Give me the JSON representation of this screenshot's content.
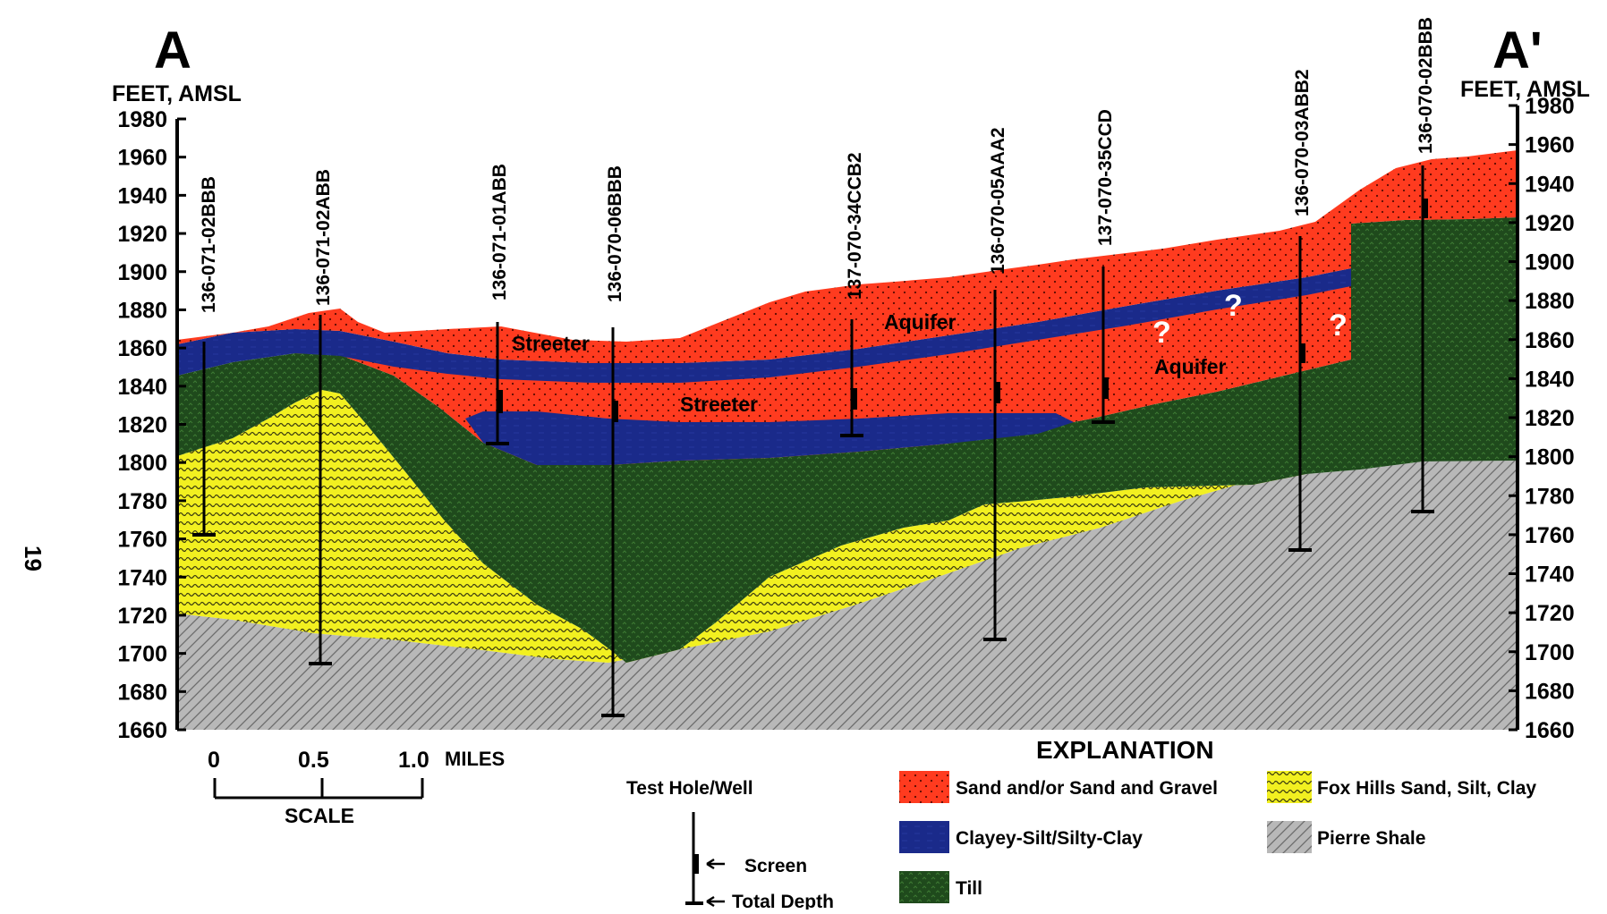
{
  "section": {
    "left_label": "A",
    "right_label": "A'",
    "left_axis_title": "FEET, AMSL",
    "right_axis_title": "FEET, AMSL"
  },
  "axis": {
    "ylim": [
      1660,
      1980
    ],
    "ticks": [
      "1980",
      "1960",
      "1940",
      "1920",
      "1900",
      "1880",
      "1860",
      "1840",
      "1820",
      "1800",
      "1780",
      "1760",
      "1740",
      "1720",
      "1700",
      "1680",
      "1660"
    ]
  },
  "page_number": "19",
  "wells": [
    {
      "id": "136-071-02BBB"
    },
    {
      "id": "136-071-02ABB"
    },
    {
      "id": "136-071-01ABB"
    },
    {
      "id": "136-070-06BBB"
    },
    {
      "id": "137-070-34CCB2"
    },
    {
      "id": "136-070-05AAA2"
    },
    {
      "id": "137-070-35CCD"
    },
    {
      "id": "136-070-03ABB2"
    },
    {
      "id": "136-070-02BBB"
    }
  ],
  "unit_labels": {
    "streeter_upper": "Streeter",
    "streeter_lower": "Streeter",
    "aquifer_upper": "Aquifer",
    "aquifer_lower": "Aquifer",
    "question_mark": "?"
  },
  "scale": {
    "ticks": [
      "0",
      "0.5",
      "1.0"
    ],
    "units": "MILES",
    "label": "SCALE"
  },
  "test_hole": {
    "title": "Test Hole/Well",
    "screen": "Screen",
    "total_depth": "Total Depth"
  },
  "explanation": {
    "title": "EXPLANATION",
    "items": [
      {
        "label": "Sand and/or Sand and Gravel",
        "color": "#ff3b1f"
      },
      {
        "label": "Fox Hills Sand, Silt, Clay",
        "color": "#f2f020"
      },
      {
        "label": "Clayey-Silt/Silty-Clay",
        "color": "#1a2a8a"
      },
      {
        "label": "Pierre Shale",
        "color": "#b8b8b8"
      },
      {
        "label": "Till",
        "color": "#1f4a1c"
      }
    ]
  },
  "colors": {
    "sand": "#ff3b1f",
    "clay": "#1a2a8a",
    "till": "#1f4a1c",
    "foxhills": "#f2f020",
    "pierre": "#b8b8b8"
  }
}
